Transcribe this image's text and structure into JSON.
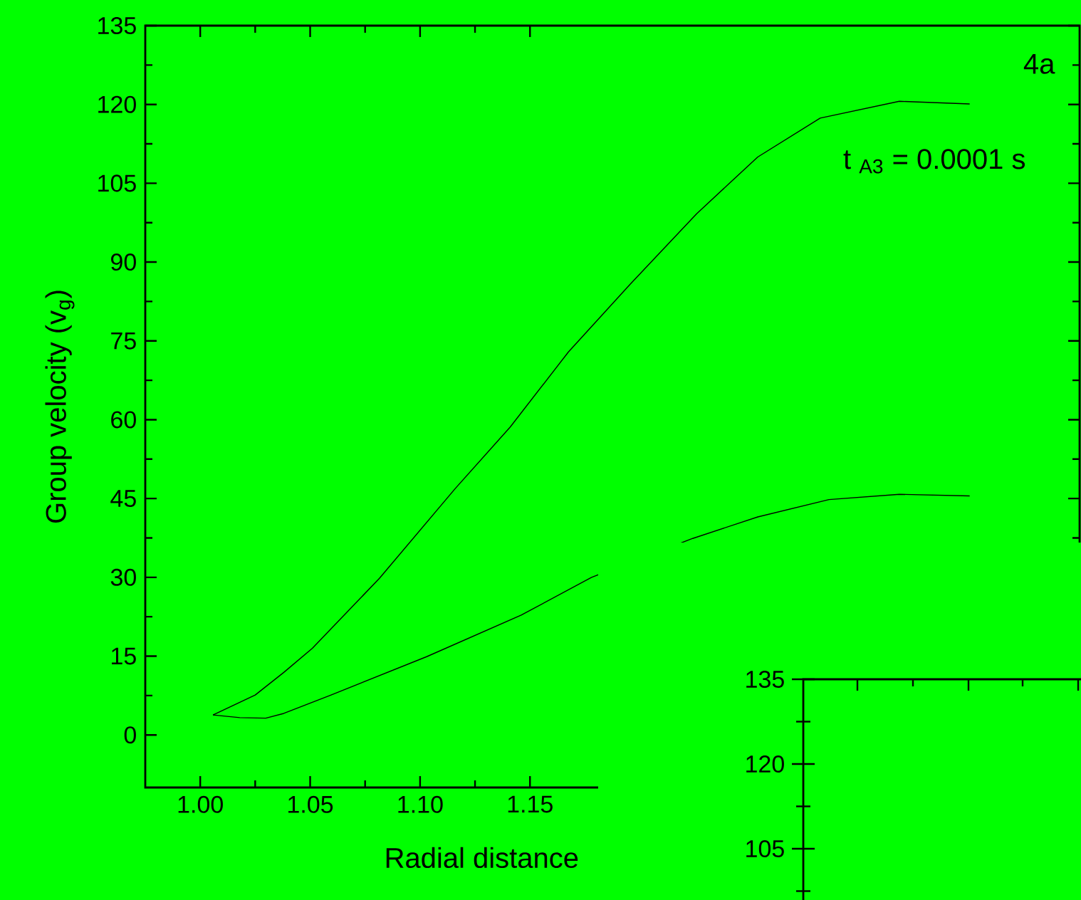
{
  "chart_data": [
    {
      "type": "line",
      "xlabel": "Radial distance",
      "ylabel": "Group velocity (v$_{g}$)",
      "xlim": [
        0.975,
        1.4
      ],
      "ylim": [
        -10,
        135
      ],
      "xticks": [
        {
          "value": 1.0,
          "label": "1.00"
        },
        {
          "value": 1.05,
          "label": "1.05"
        },
        {
          "value": 1.1,
          "label": "1.10"
        },
        {
          "value": 1.15,
          "label": "1.15"
        }
      ],
      "yticks": [
        0,
        15,
        30,
        45,
        60,
        75,
        90,
        105,
        120,
        135
      ],
      "series": [
        {
          "color": "#000000",
          "x": [
            1.0058,
            1.025,
            1.038,
            1.051,
            1.0815,
            1.116,
            1.141,
            1.1675,
            1.1954,
            1.2258,
            1.2536,
            1.282,
            1.318,
            1.35
          ],
          "values": [
            3.8,
            7.6,
            11.9,
            16.5,
            29.8,
            46.9,
            58.6,
            72.9,
            85.7,
            99.2,
            110,
            117.4,
            120.6,
            120.1
          ]
        },
        {
          "color": "#000000",
          "x": [
            1.0058,
            1.018,
            1.0298,
            1.038,
            1.0595,
            1.103,
            1.146,
            1.178,
            1.224,
            1.2536,
            1.286,
            1.318,
            1.35
          ],
          "values": [
            3.8,
            3.3,
            3.2,
            4.1,
            7.6,
            14.9,
            22.8,
            30.0,
            37.4,
            41.5,
            44.8,
            45.8,
            45.5
          ]
        }
      ],
      "annotations": [
        "4a",
        "t $_{A3}$ = 0.0001 s"
      ]
    },
    {
      "type": "other",
      "annotations": [
        "135",
        "120",
        "105"
      ]
    }
  ]
}
